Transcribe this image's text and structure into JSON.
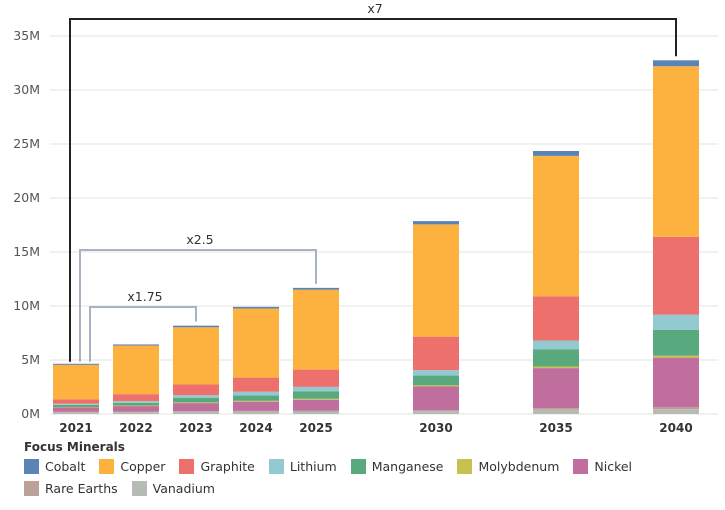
{
  "chart_data": {
    "type": "bar",
    "stacked": true,
    "title": "",
    "xlabel": "",
    "ylabel": "",
    "ylim": [
      0,
      35000000
    ],
    "y_ticks": [
      0,
      5000000,
      10000000,
      15000000,
      20000000,
      25000000,
      30000000,
      35000000
    ],
    "y_tick_labels": [
      "0M",
      "5M",
      "10M",
      "15M",
      "20M",
      "25M",
      "30M",
      "35M"
    ],
    "grid": true,
    "categories": [
      "2021",
      "2022",
      "2023",
      "2024",
      "2025",
      "2030",
      "2035",
      "2040"
    ],
    "series": [
      {
        "name": "Vanadium",
        "color": "#b5bcb4",
        "values": [
          150000,
          170000,
          190000,
          210000,
          230000,
          250000,
          400000,
          450000
        ]
      },
      {
        "name": "Rare Earths",
        "color": "#bba197",
        "values": [
          50000,
          60000,
          70000,
          80000,
          90000,
          100000,
          150000,
          170000
        ]
      },
      {
        "name": "Nickel",
        "color": "#bf6e9e",
        "values": [
          400000,
          500000,
          750000,
          850000,
          1000000,
          2200000,
          3700000,
          4600000
        ]
      },
      {
        "name": "Molybdenum",
        "color": "#c8c14e",
        "values": [
          50000,
          60000,
          70000,
          80000,
          90000,
          110000,
          150000,
          180000
        ]
      },
      {
        "name": "Manganese",
        "color": "#59a97f",
        "values": [
          200000,
          250000,
          400000,
          500000,
          700000,
          900000,
          1600000,
          2400000
        ]
      },
      {
        "name": "Lithium",
        "color": "#93cad1",
        "values": [
          100000,
          150000,
          250000,
          350000,
          400000,
          500000,
          800000,
          1400000
        ]
      },
      {
        "name": "Graphite",
        "color": "#ee706c",
        "values": [
          400000,
          650000,
          1000000,
          1300000,
          1600000,
          3100000,
          4100000,
          7200000
        ]
      },
      {
        "name": "Copper",
        "color": "#fdb13f",
        "values": [
          3200000,
          4500000,
          5300000,
          6400000,
          7400000,
          10400000,
          13000000,
          15800000
        ]
      },
      {
        "name": "Cobalt",
        "color": "#5b83b6",
        "values": [
          100000,
          100000,
          150000,
          150000,
          170000,
          300000,
          450000,
          550000
        ]
      }
    ],
    "comparisons": [
      {
        "label": "x1.75",
        "from": "2021",
        "to": "2023"
      },
      {
        "label": "x2.5",
        "from": "2021",
        "to": "2025"
      },
      {
        "label": "x7",
        "from": "2021",
        "to": "2040"
      }
    ],
    "legend": {
      "title": "Focus Minerals",
      "placement": "bottom",
      "items": [
        {
          "name": "Cobalt",
          "color": "#5b83b6"
        },
        {
          "name": "Copper",
          "color": "#fdb13f"
        },
        {
          "name": "Graphite",
          "color": "#ee706c"
        },
        {
          "name": "Lithium",
          "color": "#93cad1"
        },
        {
          "name": "Manganese",
          "color": "#59a97f"
        },
        {
          "name": "Molybdenum",
          "color": "#c8c14e"
        },
        {
          "name": "Nickel",
          "color": "#bf6e9e"
        },
        {
          "name": "Rare Earths",
          "color": "#bba197"
        },
        {
          "name": "Vanadium",
          "color": "#b5bcb4"
        }
      ]
    }
  }
}
